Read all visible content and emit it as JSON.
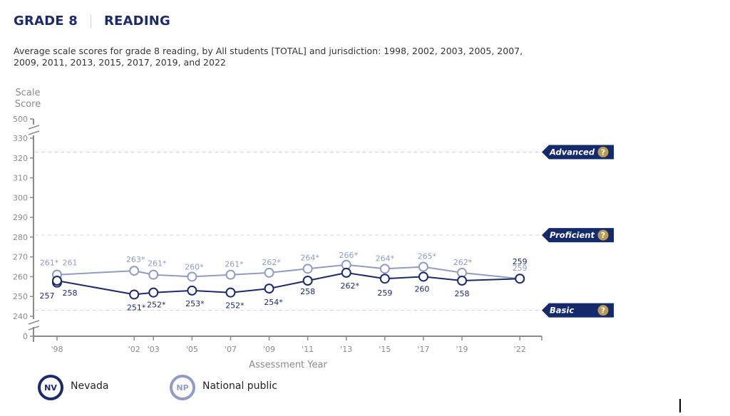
{
  "header": {
    "grade": "GRADE 8",
    "subject": "READING"
  },
  "subtitle": "Average scale scores for grade 8 reading, by All students [TOTAL] and jurisdiction: 1998, 2002, 2003, 2005, 2007, 2009, 2011, 2013, 2015, 2017, 2019, and 2022",
  "legend": {
    "nevada": {
      "abbr": "NV",
      "label": "Nevada"
    },
    "national": {
      "abbr": "NP",
      "label": "National public"
    }
  },
  "chart_data": {
    "type": "line",
    "title": "Average scale scores for grade 8 reading",
    "ylabel_line1": "Scale",
    "ylabel_line2": "Score",
    "xlabel": "Assessment Year",
    "ylim": [
      240,
      330
    ],
    "axis_break": true,
    "y_ticks": [
      500,
      330,
      320,
      310,
      300,
      290,
      280,
      270,
      260,
      250,
      240,
      0
    ],
    "x": [
      1998,
      2002,
      2003,
      2005,
      2007,
      2009,
      2011,
      2013,
      2015,
      2017,
      2019,
      2022
    ],
    "x_tick_labels": [
      "'98",
      "'02",
      "'03",
      "'05",
      "'07",
      "'09",
      "'11",
      "'13",
      "'15",
      "'17",
      "'19",
      "'22"
    ],
    "achievement_levels": [
      {
        "name": "Advanced",
        "cut": 323,
        "help": "?"
      },
      {
        "name": "Proficient",
        "cut": 281,
        "help": "?"
      },
      {
        "name": "Basic",
        "cut": 243,
        "help": "?"
      }
    ],
    "series": [
      {
        "name": "Nevada",
        "abbr": "NV",
        "color": "#1a2a6c",
        "points": [
          {
            "year": 1998,
            "value": 257,
            "label": "257"
          },
          {
            "year": 1998,
            "value": 258,
            "label": "258"
          },
          {
            "year": 2002,
            "value": 251,
            "label": "251*"
          },
          {
            "year": 2003,
            "value": 252,
            "label": "252*"
          },
          {
            "year": 2005,
            "value": 253,
            "label": "253*"
          },
          {
            "year": 2007,
            "value": 252,
            "label": "252*"
          },
          {
            "year": 2009,
            "value": 254,
            "label": "254*"
          },
          {
            "year": 2011,
            "value": 258,
            "label": "258"
          },
          {
            "year": 2013,
            "value": 262,
            "label": "262*"
          },
          {
            "year": 2015,
            "value": 259,
            "label": "259"
          },
          {
            "year": 2017,
            "value": 260,
            "label": "260"
          },
          {
            "year": 2019,
            "value": 258,
            "label": "258"
          },
          {
            "year": 2022,
            "value": 259,
            "label": "259"
          }
        ]
      },
      {
        "name": "National public",
        "abbr": "NP",
        "color": "#8f9cc4",
        "points": [
          {
            "year": 1998,
            "value": 261,
            "label": "261*"
          },
          {
            "year": 1998,
            "value": 261,
            "label": "261"
          },
          {
            "year": 2002,
            "value": 263,
            "label": "263*"
          },
          {
            "year": 2003,
            "value": 261,
            "label": "261*"
          },
          {
            "year": 2005,
            "value": 260,
            "label": "260*"
          },
          {
            "year": 2007,
            "value": 261,
            "label": "261*"
          },
          {
            "year": 2009,
            "value": 262,
            "label": "262*"
          },
          {
            "year": 2011,
            "value": 264,
            "label": "264*"
          },
          {
            "year": 2013,
            "value": 266,
            "label": "266*"
          },
          {
            "year": 2015,
            "value": 264,
            "label": "264*"
          },
          {
            "year": 2017,
            "value": 265,
            "label": "265*"
          },
          {
            "year": 2019,
            "value": 262,
            "label": "262*"
          },
          {
            "year": 2022,
            "value": 259,
            "label": "259"
          }
        ]
      }
    ],
    "colors": {
      "nevada": "#1a2a6c",
      "national": "#8f9cc4",
      "level_tag": "#142a6b",
      "help_badge": "#b99a56",
      "axis": "#8a8a8a"
    }
  }
}
